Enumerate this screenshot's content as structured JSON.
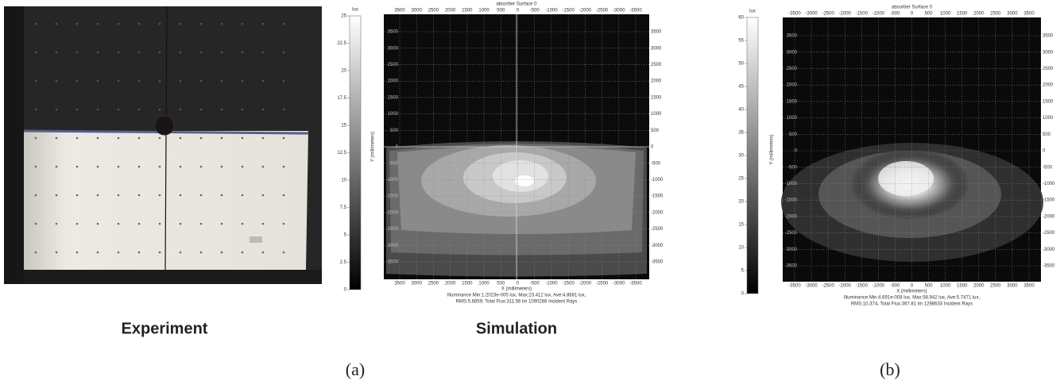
{
  "experiment": {
    "caption": "Experiment"
  },
  "sim_a": {
    "title": "absorber Surface 0",
    "unit": "lux",
    "colorbar_ticks": [
      "25",
      "22.5",
      "20",
      "17.5",
      "15",
      "12.5",
      "10",
      "7.5",
      "5",
      "2.5",
      "0"
    ],
    "x_ticks": [
      "3500",
      "3000",
      "2500",
      "2000",
      "1500",
      "1000",
      "500",
      "0",
      "-500",
      "-1000",
      "-1500",
      "-2000",
      "-2500",
      "-3000",
      "-3500"
    ],
    "y_ticks": [
      "3500",
      "3000",
      "2500",
      "2000",
      "1500",
      "1000",
      "500",
      "0",
      "-500",
      "-1000",
      "-1500",
      "-2000",
      "-2500",
      "-3000",
      "-3500"
    ],
    "x_label": "X (millimeters)",
    "y_label": "Y (millimeters)",
    "footer": [
      "Illuminance Min:1.2023e-005 lux, Max:23.412 lux, Ave:4.8681 lux,",
      "RMS:5.6859; Total Flux:311.56 lm 1090288 Incident Rays"
    ],
    "caption": "Simulation",
    "label": "(a)"
  },
  "sim_b": {
    "title": "absorber Surface 0",
    "unit": "lux",
    "colorbar_ticks": [
      "60",
      "55",
      "50",
      "45",
      "40",
      "35",
      "30",
      "25",
      "20",
      "15",
      "10",
      "5",
      "0"
    ],
    "x_ticks": [
      "-3500",
      "-3000",
      "-2500",
      "-2000",
      "-1500",
      "-1000",
      "-500",
      "0",
      "500",
      "1000",
      "1500",
      "2000",
      "2500",
      "3000",
      "3500"
    ],
    "y_ticks": [
      "3500",
      "3000",
      "2500",
      "2000",
      "1500",
      "1000",
      "500",
      "0",
      "-500",
      "-1000",
      "-1500",
      "-2000",
      "-2500",
      "-3000",
      "-3500"
    ],
    "x_label": "X (millimeters)",
    "y_label": "Y (millimeters)",
    "footer": [
      "Illuminance Min:4.691e-008 lux, Max:58.942 lux, Ave:5.7471 lux,",
      "RMS:10.374, Total Flux:367.81 lm 1298633 Incident Rays"
    ],
    "label": "(b)"
  }
}
